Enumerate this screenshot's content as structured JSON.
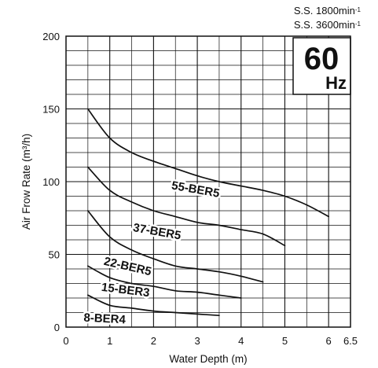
{
  "header": {
    "speed_1": "S.S. 1800min",
    "speed_2": "S.S. 3600min",
    "speed_unit_exp": "-1"
  },
  "badge": {
    "frequency": "60",
    "unit": "Hz"
  },
  "chart_data": {
    "type": "line",
    "title": "",
    "xlabel": "Water Depth (m)",
    "ylabel": "Air Frow Rate (m³/h)",
    "xlim": [
      0,
      6.5
    ],
    "ylim": [
      0,
      200
    ],
    "x_ticks": [
      "0",
      "1",
      "2",
      "3",
      "4",
      "5",
      "6",
      "6.5"
    ],
    "y_ticks": [
      "0",
      "50",
      "100",
      "150",
      "200"
    ],
    "grid": true,
    "series": [
      {
        "name": "55-BER5",
        "x": [
          0.5,
          1,
          1.5,
          2,
          2.5,
          3,
          3.5,
          4,
          4.5,
          5,
          5.5,
          6
        ],
        "y": [
          150,
          130,
          120,
          114,
          109,
          104,
          100,
          97,
          94,
          90,
          84,
          76
        ]
      },
      {
        "name": "37-BER5",
        "x": [
          0.5,
          1,
          1.5,
          2,
          2.5,
          3,
          3.5,
          4,
          4.5,
          5
        ],
        "y": [
          110,
          94,
          86,
          80,
          76,
          72,
          70,
          67,
          64,
          56
        ]
      },
      {
        "name": "22-BER5",
        "x": [
          0.5,
          1,
          1.5,
          2,
          2.5,
          3,
          3.5,
          4,
          4.5
        ],
        "y": [
          80,
          62,
          53,
          47,
          42,
          40,
          38,
          35,
          31
        ]
      },
      {
        "name": "15-BER3",
        "x": [
          0.5,
          1,
          1.5,
          2,
          2.5,
          3,
          3.5,
          4
        ],
        "y": [
          42,
          34,
          30,
          28,
          25,
          24,
          22,
          20
        ]
      },
      {
        "name": "8-BER4",
        "x": [
          0.5,
          1,
          1.5,
          2,
          2.5,
          3,
          3.5
        ],
        "y": [
          22,
          15,
          13,
          11,
          10,
          9,
          8
        ]
      }
    ]
  }
}
